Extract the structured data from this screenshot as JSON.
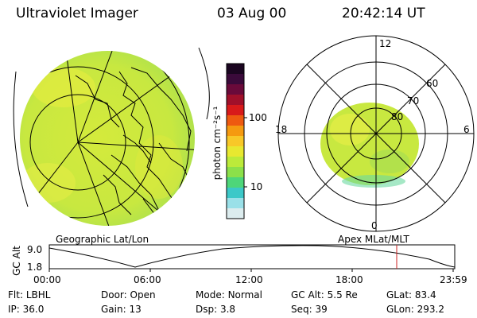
{
  "header": {
    "instrument": "Ultraviolet Imager",
    "date": "03 Aug 00",
    "time": "20:42:14 UT"
  },
  "left_panel": {
    "label": "Geographic Lat/Lon"
  },
  "right_panel": {
    "label": "Apex MLat/MLT",
    "mlt_labels": {
      "top": "12",
      "right": "6",
      "bottom": "0",
      "left": "18"
    },
    "lat_labels": [
      "60",
      "70",
      "80"
    ]
  },
  "colorbar": {
    "unit": "photon cm⁻²s⁻¹",
    "tick_labels": [
      "100",
      "10"
    ],
    "colors": [
      "#1a0520",
      "#3a0a3a",
      "#6a0a3a",
      "#a0102a",
      "#d81a1a",
      "#ee5a10",
      "#f59a10",
      "#f8c828",
      "#e8e830",
      "#bcea3a",
      "#8ce04a",
      "#4ed67a",
      "#3cc8c8",
      "#9ae0e8",
      "#dcecee"
    ]
  },
  "timeline": {
    "ylabel": "GC Alt",
    "yticks": [
      "9.0",
      "1.8"
    ],
    "xticks": [
      "00:00",
      "06:00",
      "12:00",
      "18:00",
      "23:59"
    ],
    "marker_color": "#cc2222"
  },
  "status": {
    "row1": [
      {
        "label": "Flt:",
        "value": "LBHL"
      },
      {
        "label": "Door:",
        "value": "Open"
      },
      {
        "label": "Mode:",
        "value": "Normal"
      },
      {
        "label": "GC Alt:",
        "value": "5.5 Re"
      },
      {
        "label": "GLat:",
        "value": "83.4"
      }
    ],
    "row2": [
      {
        "label": "IP:",
        "value": "36.0"
      },
      {
        "label": "Gain:",
        "value": "13"
      },
      {
        "label": "Dsp:",
        "value": "3.8"
      },
      {
        "label": "Seq:",
        "value": "39"
      },
      {
        "label": "GLon:",
        "value": "293.2"
      }
    ]
  }
}
